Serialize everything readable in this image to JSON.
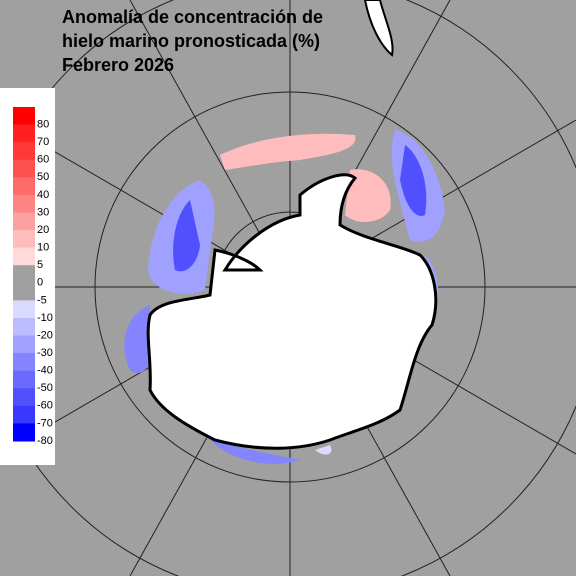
{
  "title": [
    "Anomalía de concentración de",
    "hielo marino pronosticada (%)",
    "Febrero 2026"
  ],
  "colorbar": {
    "labels": [
      "80",
      "70",
      "60",
      "50",
      "40",
      "30",
      "20",
      "10",
      "5",
      "0",
      "-5",
      "-10",
      "-20",
      "-30",
      "-40",
      "-50",
      "-60",
      "-70",
      "-80"
    ],
    "colors": [
      "#ff0000",
      "#ff2020",
      "#ff3838",
      "#ff5050",
      "#ff6a6a",
      "#ff8484",
      "#ffa0a0",
      "#ffbcbc",
      "#ffdada",
      "#a0a0a0",
      "#a0a0a0",
      "#dadaff",
      "#bcbcff",
      "#a0a0ff",
      "#8484ff",
      "#6a6aff",
      "#5050ff",
      "#3838ff",
      "#0000ff"
    ]
  }
}
